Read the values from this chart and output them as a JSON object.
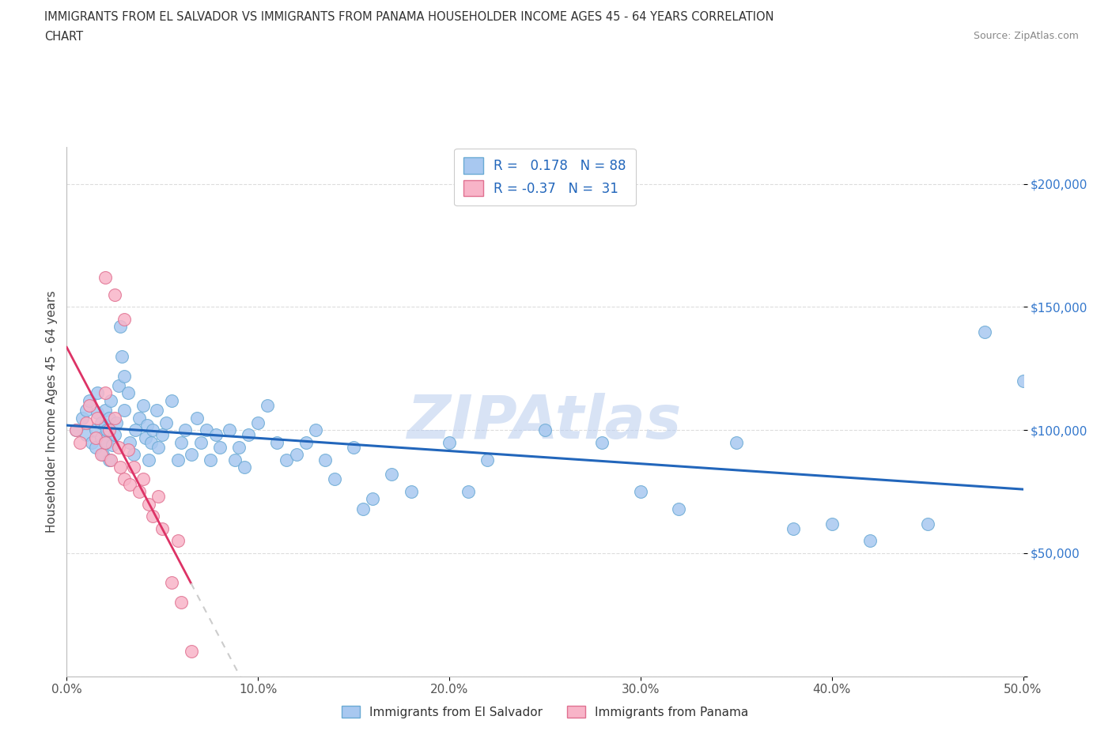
{
  "title_line1": "IMMIGRANTS FROM EL SALVADOR VS IMMIGRANTS FROM PANAMA HOUSEHOLDER INCOME AGES 45 - 64 YEARS CORRELATION",
  "title_line2": "CHART",
  "source_text": "Source: ZipAtlas.com",
  "ylabel": "Householder Income Ages 45 - 64 years",
  "xlim": [
    0.0,
    0.5
  ],
  "ylim": [
    0,
    215000
  ],
  "yticks": [
    0,
    50000,
    100000,
    150000,
    200000
  ],
  "ytick_labels": [
    "",
    "$50,000",
    "$100,000",
    "$150,000",
    "$200,000"
  ],
  "xticks": [
    0.0,
    0.1,
    0.2,
    0.3,
    0.4,
    0.5
  ],
  "xtick_labels": [
    "0.0%",
    "10.0%",
    "20.0%",
    "30.0%",
    "40.0%",
    "50.0%"
  ],
  "el_salvador_color": "#a8c8f0",
  "el_salvador_edge": "#6aaad4",
  "panama_color": "#f8b4c8",
  "panama_edge": "#e07090",
  "el_salvador_line_color": "#2266bb",
  "panama_line_color": "#dd3366",
  "panama_line_dash_solid": "#dd3366",
  "R_salvador": 0.178,
  "N_salvador": 88,
  "R_panama": -0.37,
  "N_panama": 31,
  "watermark": "ZIPAtlas",
  "grid_color": "#dddddd",
  "legend_label_salvador": "Immigrants from El Salvador",
  "legend_label_panama": "Immigrants from Panama",
  "el_salvador_x": [
    0.005,
    0.008,
    0.01,
    0.01,
    0.012,
    0.013,
    0.015,
    0.015,
    0.016,
    0.016,
    0.018,
    0.018,
    0.019,
    0.02,
    0.02,
    0.02,
    0.021,
    0.021,
    0.022,
    0.022,
    0.023,
    0.024,
    0.025,
    0.026,
    0.027,
    0.028,
    0.029,
    0.03,
    0.03,
    0.032,
    0.033,
    0.035,
    0.036,
    0.038,
    0.04,
    0.041,
    0.042,
    0.043,
    0.044,
    0.045,
    0.047,
    0.048,
    0.05,
    0.052,
    0.055,
    0.058,
    0.06,
    0.062,
    0.065,
    0.068,
    0.07,
    0.073,
    0.075,
    0.078,
    0.08,
    0.085,
    0.088,
    0.09,
    0.093,
    0.095,
    0.1,
    0.105,
    0.11,
    0.115,
    0.12,
    0.125,
    0.13,
    0.135,
    0.14,
    0.15,
    0.155,
    0.16,
    0.17,
    0.18,
    0.2,
    0.21,
    0.22,
    0.25,
    0.28,
    0.3,
    0.32,
    0.35,
    0.38,
    0.4,
    0.42,
    0.45,
    0.48,
    0.5
  ],
  "el_salvador_y": [
    100000,
    105000,
    98000,
    108000,
    112000,
    95000,
    100000,
    93000,
    107000,
    115000,
    97000,
    103000,
    90000,
    96000,
    102000,
    108000,
    95000,
    100000,
    88000,
    105000,
    112000,
    94000,
    98000,
    103000,
    118000,
    142000,
    130000,
    108000,
    122000,
    115000,
    95000,
    90000,
    100000,
    105000,
    110000,
    97000,
    102000,
    88000,
    95000,
    100000,
    108000,
    93000,
    98000,
    103000,
    112000,
    88000,
    95000,
    100000,
    90000,
    105000,
    95000,
    100000,
    88000,
    98000,
    93000,
    100000,
    88000,
    93000,
    85000,
    98000,
    103000,
    110000,
    95000,
    88000,
    90000,
    95000,
    100000,
    88000,
    80000,
    93000,
    68000,
    72000,
    82000,
    75000,
    95000,
    75000,
    88000,
    100000,
    95000,
    75000,
    68000,
    95000,
    60000,
    62000,
    55000,
    62000,
    140000,
    120000
  ],
  "panama_x": [
    0.005,
    0.007,
    0.01,
    0.012,
    0.015,
    0.016,
    0.018,
    0.02,
    0.02,
    0.022,
    0.023,
    0.025,
    0.027,
    0.028,
    0.03,
    0.032,
    0.033,
    0.035,
    0.038,
    0.04,
    0.043,
    0.045,
    0.048,
    0.05,
    0.055,
    0.058,
    0.06,
    0.065,
    0.02,
    0.025,
    0.03
  ],
  "panama_y": [
    100000,
    95000,
    103000,
    110000,
    97000,
    105000,
    90000,
    95000,
    115000,
    100000,
    88000,
    105000,
    93000,
    85000,
    80000,
    92000,
    78000,
    85000,
    75000,
    80000,
    70000,
    65000,
    73000,
    60000,
    38000,
    55000,
    30000,
    10000,
    162000,
    155000,
    145000
  ]
}
